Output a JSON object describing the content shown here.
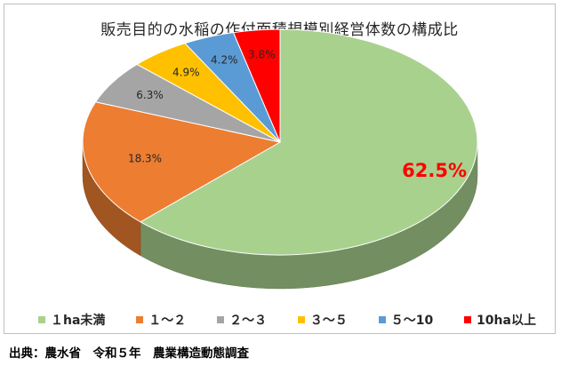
{
  "chart_data": {
    "type": "pie",
    "title": "販売目的の水稲の作付面積規模別経営体数の構成比",
    "categories": [
      "１ha未満",
      "１～２",
      "２～３",
      "３～５",
      "５～10",
      "10ha以上"
    ],
    "values": [
      62.5,
      18.3,
      6.3,
      4.9,
      4.2,
      3.8
    ],
    "labels": [
      "62.5%",
      "18.3%",
      "6.3%",
      "4.9%",
      "4.2%",
      "3.8%"
    ],
    "colors": [
      "#a9d18e",
      "#ed7d31",
      "#a5a5a5",
      "#ffc000",
      "#5b9bd5",
      "#ff0000"
    ],
    "legend_position": "bottom",
    "style": "3d"
  },
  "source": "出典：農水省　令和５年　農業構造動態調査"
}
